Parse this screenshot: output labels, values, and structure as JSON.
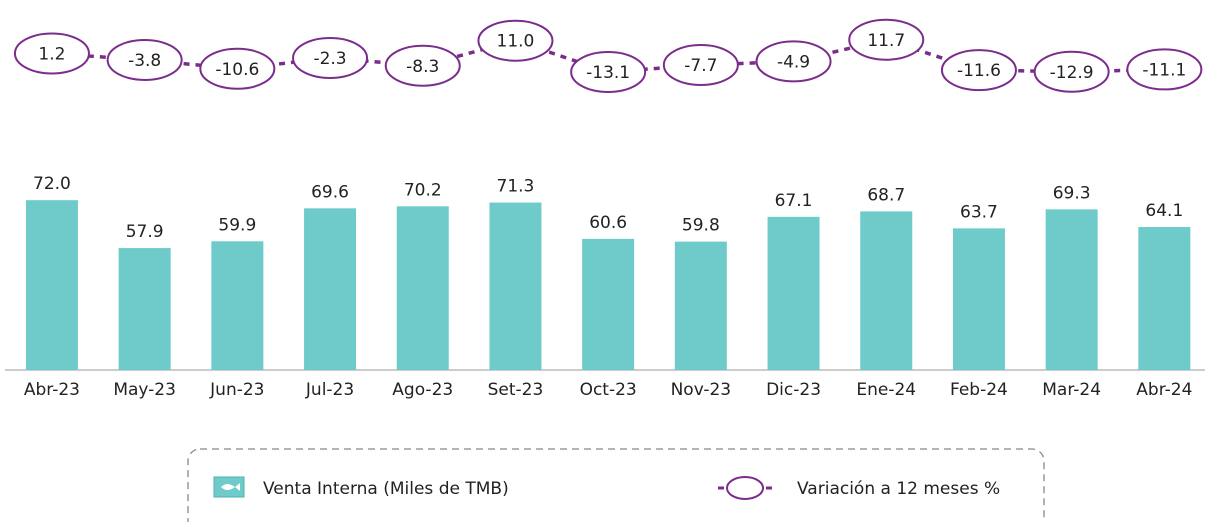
{
  "chart_data": {
    "type": "bar",
    "categories": [
      "Abr-23",
      "May-23",
      "Jun-23",
      "Jul-23",
      "Ago-23",
      "Set-23",
      "Oct-23",
      "Nov-23",
      "Dic-23",
      "Ene-24",
      "Feb-24",
      "Mar-24",
      "Abr-24"
    ],
    "series": [
      {
        "name": "Venta Interna (Miles de TMB)",
        "color": "#6ecbc9",
        "type": "bar",
        "values": [
          72.0,
          57.9,
          59.9,
          69.6,
          70.2,
          71.3,
          60.6,
          59.8,
          67.1,
          68.7,
          63.7,
          69.3,
          64.1
        ],
        "value_labels": [
          "72.0",
          "57.9",
          "59.9",
          "69.6",
          "70.2",
          "71.3",
          "60.6",
          "59.8",
          "67.1",
          "68.7",
          "63.7",
          "69.3",
          "64.1"
        ]
      },
      {
        "name": "Variación a 12 meses %",
        "color": "#7b2d8b",
        "type": "line",
        "axis": "y2",
        "values": [
          1.2,
          -3.8,
          -10.6,
          -2.3,
          -8.3,
          11.0,
          -13.1,
          -7.7,
          -4.9,
          11.7,
          -11.6,
          -12.9,
          -11.1
        ],
        "value_labels": [
          "1.2",
          "-3.8",
          "-10.6",
          "-2.3",
          "-8.3",
          "11.0",
          "-13.1",
          "-7.7",
          "-4.9",
          "11.7",
          "-11.6",
          "-12.9",
          "-11.1"
        ]
      }
    ],
    "ylim": [
      22,
      75
    ],
    "y2lim": [
      -40,
      40
    ],
    "legend": "bottom"
  }
}
